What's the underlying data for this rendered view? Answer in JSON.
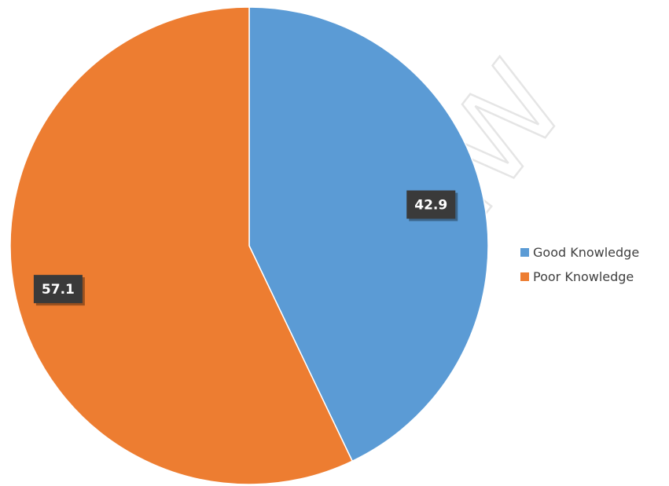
{
  "chart_data": {
    "type": "pie",
    "title": "",
    "slices": [
      {
        "label": "Good Knowledge",
        "value": 42.9,
        "value_label": "42.9",
        "color": "#5B9BD5"
      },
      {
        "label": "Poor Knowledge",
        "value": 57.1,
        "value_label": "57.1",
        "color": "#ED7D31"
      }
    ],
    "start_angle": "12 o'clock",
    "direction": "clockwise",
    "legend_position": "right",
    "data_labels": "dark boxes with white bold text"
  },
  "watermark": "REVIEW"
}
